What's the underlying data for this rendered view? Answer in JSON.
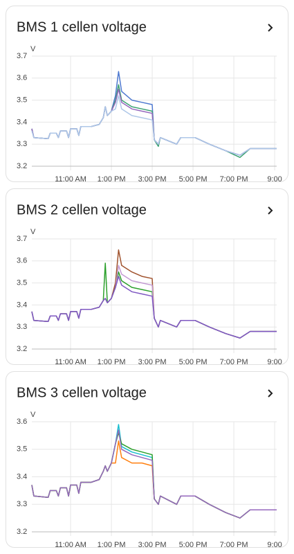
{
  "chart_data": [
    {
      "type": "line",
      "title": "BMS 1 cellen voltage",
      "y_label": "V",
      "ylim": [
        3.2,
        3.7
      ],
      "yticks": [
        3.2,
        3.3,
        3.4,
        3.5,
        3.6,
        3.7
      ],
      "xlim": [
        9.1,
        21.1
      ],
      "xticks": [
        {
          "value": 11,
          "label": "11:00 AM"
        },
        {
          "value": 13,
          "label": "1:00 PM"
        },
        {
          "value": 15,
          "label": "3:00 PM"
        },
        {
          "value": 17,
          "label": "5:00 PM"
        },
        {
          "value": 19,
          "label": "7:00 PM"
        },
        {
          "value": 21,
          "label": "9:00"
        }
      ],
      "grid": true,
      "x": [
        9.1,
        9.2,
        9.9,
        10.0,
        10.3,
        10.4,
        10.5,
        10.8,
        10.9,
        11.0,
        11.3,
        11.4,
        11.5,
        12.0,
        12.4,
        12.6,
        12.7,
        12.8,
        13.0,
        13.2,
        13.35,
        13.5,
        14.0,
        14.5,
        15.0,
        15.1,
        15.3,
        15.4,
        16.2,
        16.4,
        17.1,
        17.8,
        18.6,
        19.3,
        19.8,
        21.1
      ],
      "series": [
        {
          "color": "#4e79d0",
          "values": [
            3.37,
            3.33,
            3.325,
            3.35,
            3.35,
            3.33,
            3.36,
            3.36,
            3.33,
            3.37,
            3.37,
            3.34,
            3.38,
            3.38,
            3.39,
            3.42,
            3.47,
            3.43,
            3.45,
            3.52,
            3.63,
            3.54,
            3.5,
            3.49,
            3.48,
            3.32,
            3.3,
            3.33,
            3.3,
            3.33,
            3.33,
            3.3,
            3.27,
            3.25,
            3.28,
            3.28
          ]
        },
        {
          "color": "#3ba272",
          "values": [
            3.37,
            3.33,
            3.325,
            3.35,
            3.35,
            3.33,
            3.36,
            3.36,
            3.33,
            3.37,
            3.37,
            3.34,
            3.38,
            3.38,
            3.39,
            3.42,
            3.47,
            3.43,
            3.45,
            3.5,
            3.57,
            3.5,
            3.47,
            3.46,
            3.45,
            3.32,
            3.29,
            3.33,
            3.3,
            3.33,
            3.33,
            3.3,
            3.27,
            3.24,
            3.28,
            3.28
          ]
        },
        {
          "color": "#9467bd",
          "values": [
            3.37,
            3.33,
            3.325,
            3.35,
            3.35,
            3.33,
            3.36,
            3.36,
            3.33,
            3.37,
            3.37,
            3.34,
            3.38,
            3.38,
            3.39,
            3.42,
            3.47,
            3.43,
            3.45,
            3.49,
            3.55,
            3.49,
            3.46,
            3.45,
            3.44,
            3.32,
            3.3,
            3.33,
            3.3,
            3.33,
            3.33,
            3.3,
            3.27,
            3.25,
            3.28,
            3.28
          ]
        },
        {
          "color": "#aec7e8",
          "values": [
            3.36,
            3.33,
            3.325,
            3.35,
            3.35,
            3.33,
            3.36,
            3.36,
            3.33,
            3.37,
            3.37,
            3.34,
            3.38,
            3.38,
            3.39,
            3.42,
            3.47,
            3.43,
            3.45,
            3.46,
            3.52,
            3.46,
            3.43,
            3.42,
            3.41,
            3.32,
            3.3,
            3.33,
            3.3,
            3.33,
            3.33,
            3.3,
            3.27,
            3.25,
            3.28,
            3.28
          ]
        }
      ]
    },
    {
      "type": "line",
      "title": "BMS 2 cellen voltage",
      "y_label": "V",
      "ylim": [
        3.2,
        3.7
      ],
      "yticks": [
        3.2,
        3.3,
        3.4,
        3.5,
        3.6,
        3.7
      ],
      "xlim": [
        9.1,
        21.1
      ],
      "xticks": [
        {
          "value": 11,
          "label": "11:00 AM"
        },
        {
          "value": 13,
          "label": "1:00 PM"
        },
        {
          "value": 15,
          "label": "3:00 PM"
        },
        {
          "value": 17,
          "label": "5:00 PM"
        },
        {
          "value": 19,
          "label": "7:00 PM"
        },
        {
          "value": 21,
          "label": "9:00"
        }
      ],
      "grid": true,
      "x": [
        9.1,
        9.2,
        9.9,
        10.0,
        10.3,
        10.4,
        10.5,
        10.8,
        10.9,
        11.0,
        11.3,
        11.4,
        11.5,
        12.0,
        12.4,
        12.6,
        12.7,
        12.8,
        13.0,
        13.2,
        13.35,
        13.5,
        14.0,
        14.5,
        15.0,
        15.1,
        15.3,
        15.4,
        16.2,
        16.4,
        17.1,
        17.8,
        18.6,
        19.3,
        19.8,
        21.1
      ],
      "series": [
        {
          "color": "#a0522d",
          "values": [
            3.37,
            3.33,
            3.325,
            3.35,
            3.35,
            3.33,
            3.36,
            3.36,
            3.33,
            3.37,
            3.37,
            3.34,
            3.38,
            3.38,
            3.39,
            3.42,
            3.43,
            3.41,
            3.43,
            3.5,
            3.65,
            3.58,
            3.55,
            3.53,
            3.52,
            3.34,
            3.3,
            3.33,
            3.3,
            3.33,
            3.33,
            3.3,
            3.27,
            3.25,
            3.28,
            3.28
          ]
        },
        {
          "color": "#2ca02c",
          "values": [
            3.37,
            3.33,
            3.325,
            3.35,
            3.35,
            3.33,
            3.36,
            3.36,
            3.33,
            3.37,
            3.37,
            3.34,
            3.38,
            3.38,
            3.39,
            3.42,
            3.59,
            3.41,
            3.43,
            3.48,
            3.55,
            3.51,
            3.48,
            3.47,
            3.46,
            3.34,
            3.3,
            3.33,
            3.3,
            3.33,
            3.33,
            3.3,
            3.27,
            3.25,
            3.28,
            3.28
          ]
        },
        {
          "color": "#c39bd3",
          "values": [
            3.37,
            3.33,
            3.325,
            3.35,
            3.35,
            3.33,
            3.36,
            3.36,
            3.33,
            3.37,
            3.37,
            3.34,
            3.38,
            3.38,
            3.39,
            3.42,
            3.43,
            3.41,
            3.43,
            3.48,
            3.58,
            3.54,
            3.51,
            3.5,
            3.49,
            3.34,
            3.3,
            3.33,
            3.3,
            3.33,
            3.33,
            3.3,
            3.27,
            3.25,
            3.28,
            3.28
          ]
        },
        {
          "color": "#7e57c2",
          "values": [
            3.37,
            3.33,
            3.325,
            3.35,
            3.35,
            3.33,
            3.36,
            3.36,
            3.33,
            3.37,
            3.37,
            3.34,
            3.38,
            3.38,
            3.39,
            3.42,
            3.43,
            3.41,
            3.43,
            3.48,
            3.53,
            3.49,
            3.46,
            3.45,
            3.44,
            3.34,
            3.3,
            3.33,
            3.3,
            3.33,
            3.33,
            3.3,
            3.27,
            3.25,
            3.28,
            3.28
          ]
        }
      ]
    },
    {
      "type": "line",
      "title": "BMS 3 cellen voltage",
      "y_label": "V",
      "ylim": [
        3.2,
        3.6
      ],
      "yticks": [
        3.2,
        3.3,
        3.4,
        3.5,
        3.6
      ],
      "xlim": [
        9.1,
        21.1
      ],
      "xticks": [
        {
          "value": 11,
          "label": "11:00 AM"
        },
        {
          "value": 13,
          "label": "1:00 PM"
        },
        {
          "value": 15,
          "label": "3:00 PM"
        },
        {
          "value": 17,
          "label": "5:00 PM"
        },
        {
          "value": 19,
          "label": "7:00 PM"
        },
        {
          "value": 21,
          "label": "9:00"
        }
      ],
      "grid": true,
      "x": [
        9.1,
        9.2,
        9.9,
        10.0,
        10.3,
        10.4,
        10.5,
        10.8,
        10.9,
        11.0,
        11.3,
        11.4,
        11.5,
        12.0,
        12.4,
        12.6,
        12.7,
        12.8,
        13.0,
        13.2,
        13.35,
        13.5,
        14.0,
        14.5,
        15.0,
        15.1,
        15.3,
        15.4,
        16.2,
        16.4,
        17.1,
        17.8,
        18.6,
        19.3,
        19.8,
        21.1
      ],
      "series": [
        {
          "color": "#17becf",
          "values": [
            3.37,
            3.33,
            3.325,
            3.35,
            3.35,
            3.33,
            3.36,
            3.36,
            3.33,
            3.37,
            3.37,
            3.34,
            3.38,
            3.38,
            3.39,
            3.42,
            3.44,
            3.42,
            3.45,
            3.52,
            3.59,
            3.51,
            3.49,
            3.48,
            3.47,
            3.32,
            3.3,
            3.33,
            3.3,
            3.33,
            3.33,
            3.3,
            3.27,
            3.25,
            3.28,
            3.28
          ]
        },
        {
          "color": "#ff7f0e",
          "values": [
            3.37,
            3.33,
            3.325,
            3.35,
            3.35,
            3.33,
            3.36,
            3.36,
            3.33,
            3.37,
            3.37,
            3.34,
            3.38,
            3.38,
            3.39,
            3.42,
            3.44,
            3.42,
            3.45,
            3.45,
            3.53,
            3.47,
            3.45,
            3.45,
            3.44,
            3.32,
            3.3,
            3.33,
            3.3,
            3.33,
            3.33,
            3.3,
            3.27,
            3.25,
            3.28,
            3.28
          ]
        },
        {
          "color": "#2ca02c",
          "values": [
            3.37,
            3.33,
            3.325,
            3.35,
            3.35,
            3.33,
            3.36,
            3.36,
            3.33,
            3.37,
            3.37,
            3.34,
            3.38,
            3.38,
            3.39,
            3.42,
            3.44,
            3.42,
            3.45,
            3.52,
            3.56,
            3.52,
            3.5,
            3.49,
            3.48,
            3.32,
            3.3,
            3.33,
            3.3,
            3.33,
            3.33,
            3.3,
            3.27,
            3.25,
            3.28,
            3.28
          ]
        },
        {
          "color": "#9467bd",
          "values": [
            3.37,
            3.33,
            3.325,
            3.35,
            3.35,
            3.33,
            3.36,
            3.36,
            3.33,
            3.37,
            3.37,
            3.34,
            3.38,
            3.38,
            3.39,
            3.42,
            3.44,
            3.42,
            3.45,
            3.52,
            3.57,
            3.5,
            3.48,
            3.47,
            3.46,
            3.32,
            3.3,
            3.33,
            3.3,
            3.33,
            3.33,
            3.3,
            3.27,
            3.25,
            3.28,
            3.28
          ]
        }
      ]
    }
  ]
}
